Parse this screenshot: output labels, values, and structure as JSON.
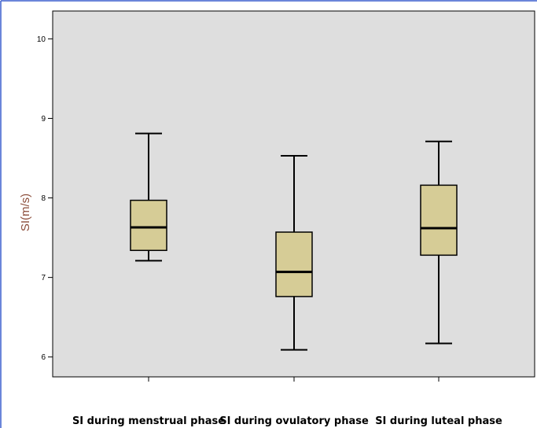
{
  "chart_data": {
    "type": "boxplot",
    "title": "",
    "xlabel": "",
    "ylabel": "SI(m/s)",
    "ylim": [
      5.75,
      10.35
    ],
    "yticks": [
      6,
      7,
      8,
      9,
      10
    ],
    "grid": false,
    "categories": [
      "SI during menstrual phase",
      "SI during ovulatory phase",
      "SI during luteal phase"
    ],
    "boxes": [
      {
        "min": 7.21,
        "q1": 7.34,
        "median": 7.63,
        "q3": 7.97,
        "max": 8.81
      },
      {
        "min": 6.09,
        "q1": 6.76,
        "median": 7.07,
        "q3": 7.57,
        "max": 8.53
      },
      {
        "min": 6.17,
        "q1": 7.28,
        "median": 7.62,
        "q3": 8.16,
        "max": 8.71
      }
    ]
  },
  "colors": {
    "plot_background": "#dedede",
    "box_fill": "#d6cc96",
    "axis_label": "#8b4c39",
    "frame_border": "#3a5fcd"
  }
}
